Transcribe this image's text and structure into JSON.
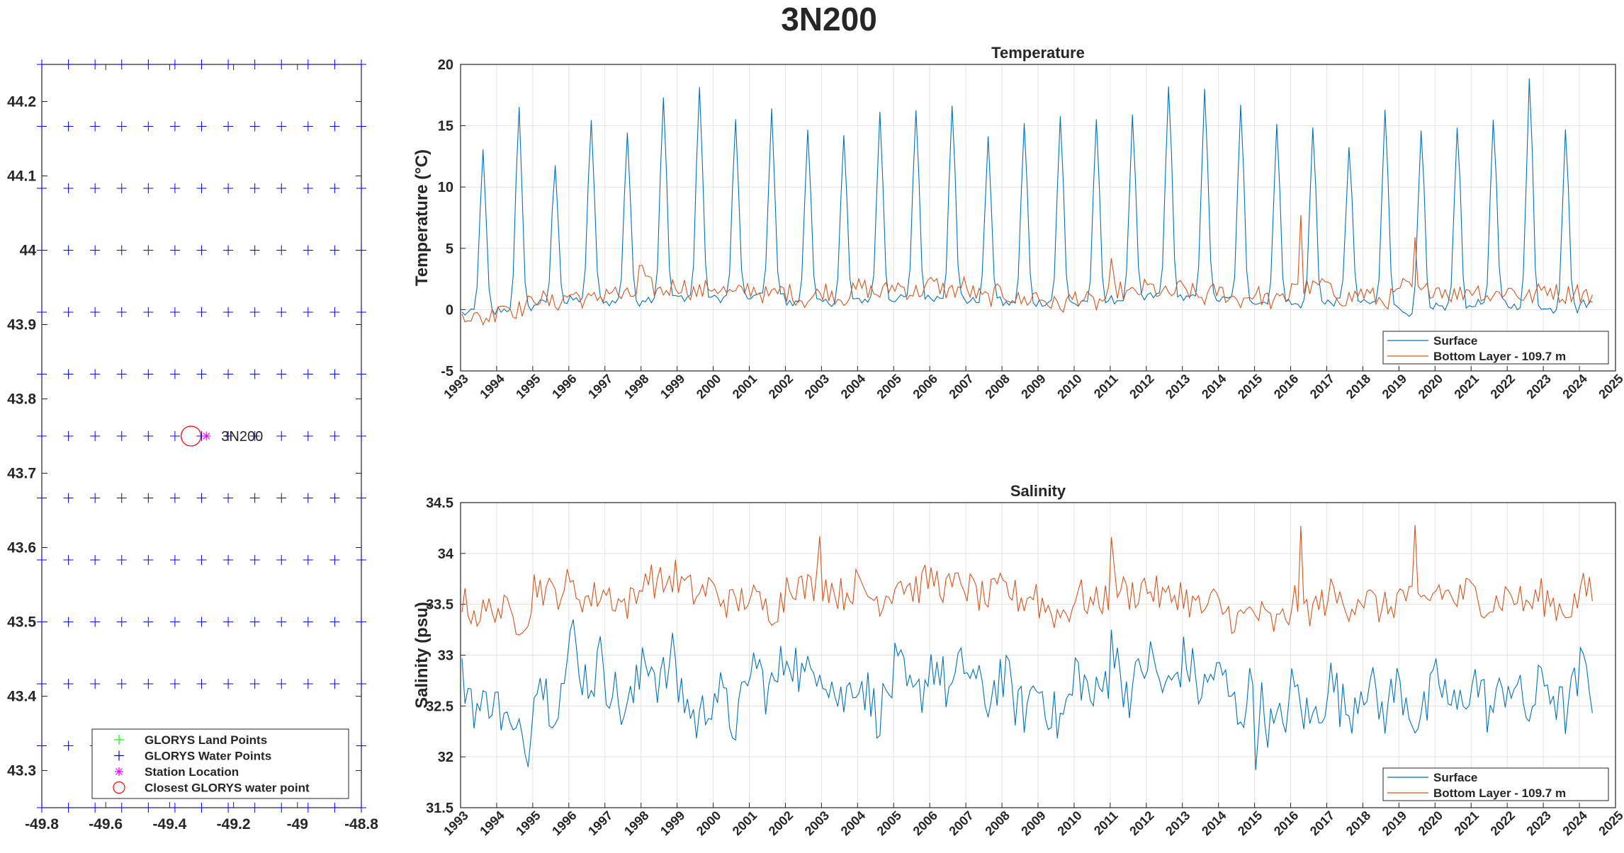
{
  "figure": {
    "title": "3N200"
  },
  "chart_data": [
    {
      "type": "scatter",
      "id": "map",
      "title": "",
      "xlabel": "",
      "ylabel": "",
      "xlim": [
        -49.8,
        -48.8
      ],
      "ylim": [
        43.25,
        44.25
      ],
      "xticks": [
        -49.8,
        -49.6,
        -49.4,
        -49.2,
        -49,
        -48.8
      ],
      "xtick_labels": [
        "-49.8",
        "-49.6",
        "-49.4",
        "-49.2",
        "-49",
        "-48.8"
      ],
      "yticks": [
        43.3,
        43.4,
        43.5,
        43.6,
        43.7,
        43.8,
        43.9,
        44,
        44.1,
        44.2
      ],
      "ytick_labels": [
        "43.3",
        "43.4",
        "43.5",
        "43.6",
        "43.7",
        "43.8",
        "43.9",
        "44",
        "44.1",
        "44.2"
      ],
      "grid": false,
      "legend_position": "bottom-right",
      "water_points": {
        "lon_start": -49.8,
        "lon_step": 0.08333,
        "lon_count": 13,
        "lat_start": 43.25,
        "lat_step": 0.08333,
        "lat_count": 13
      },
      "land_points": [],
      "station": {
        "name": "3N200",
        "lon": -49.285,
        "lat": 43.75
      },
      "closest_point": {
        "lon": -49.333,
        "lat": 43.75
      },
      "legend": [
        {
          "label": "GLORYS Land Points",
          "marker": "plus",
          "color": "#00ff00"
        },
        {
          "label": "GLORYS Water Points",
          "marker": "plus",
          "color": "#0000ff"
        },
        {
          "label": "Station Location",
          "marker": "asterisk",
          "color": "#ff00ff"
        },
        {
          "label": "Closest GLORYS water point",
          "marker": "circle",
          "color": "#ff0000"
        }
      ]
    },
    {
      "type": "line",
      "id": "temperature",
      "title": "Temperature",
      "xlabel": "",
      "ylabel": "Temperature (°C)",
      "xlim": [
        1993,
        2025
      ],
      "ylim": [
        -5,
        20
      ],
      "yticks": [
        -5,
        0,
        5,
        10,
        15,
        20
      ],
      "ytick_labels": [
        "-5",
        "0",
        "5",
        "10",
        "15",
        "20"
      ],
      "xtick_labels": [
        "1993",
        "1994",
        "1995",
        "1996",
        "1997",
        "1998",
        "1999",
        "2000",
        "2001",
        "2002",
        "2003",
        "2004",
        "2005",
        "2006",
        "2007",
        "2008",
        "2009",
        "2010",
        "2011",
        "2012",
        "2013",
        "2014",
        "2015",
        "2016",
        "2017",
        "2018",
        "2019",
        "2020",
        "2021",
        "2022",
        "2023",
        "2024",
        "2025"
      ],
      "grid": true,
      "legend_position": "bottom-right",
      "time_start": 1993.04,
      "time_step_years": 0.0833,
      "series": [
        {
          "name": "Surface",
          "color": "#0072bd",
          "annual_peaks": [
            12.8,
            16.3,
            12.0,
            15.6,
            14.5,
            17.5,
            18.3,
            15.4,
            16.1,
            14.8,
            14.1,
            16.0,
            16.4,
            16.9,
            13.8,
            15.2,
            15.7,
            15.7,
            15.6,
            18.5,
            18.3,
            16.5,
            14.9,
            14.8,
            13.5,
            16.2,
            14.6,
            14.9,
            15.6,
            18.7,
            15.0,
            3.0
          ],
          "annual_minima": [
            -0.3,
            0.0,
            0.5,
            0.8,
            0.6,
            0.9,
            1.0,
            0.9,
            1.1,
            0.5,
            0.6,
            0.8,
            0.9,
            1.0,
            0.7,
            0.5,
            0.6,
            0.4,
            0.8,
            1.1,
            0.9,
            0.8,
            0.6,
            0.4,
            0.6,
            0.5,
            -0.2,
            0.2,
            0.5,
            0.3,
            0.0,
            0.5
          ],
          "peak_phase_years": 0.62
        },
        {
          "name": "Bottom Layer - 109.7 m",
          "color": "#d95319",
          "annual_means": [
            -0.5,
            0.3,
            0.8,
            1.0,
            1.3,
            1.8,
            1.7,
            1.5,
            1.4,
            1.1,
            1.3,
            1.6,
            1.7,
            1.8,
            1.2,
            1.0,
            0.6,
            0.8,
            1.5,
            1.5,
            1.3,
            1.1,
            0.9,
            2.0,
            1.2,
            1.0,
            1.6,
            1.5,
            1.4,
            1.3,
            1.5,
            1.0
          ],
          "notable_values": [
            {
              "x": 2016.25,
              "y": 7.7
            },
            {
              "x": 2019.45,
              "y": 5.9
            },
            {
              "x": 2011.0,
              "y": 4.2
            },
            {
              "x": 1998.0,
              "y": 3.6
            }
          ]
        }
      ]
    },
    {
      "type": "line",
      "id": "salinity",
      "title": "Salinity",
      "xlabel": "",
      "ylabel": "Salinity (psu)",
      "xlim": [
        1993,
        2025
      ],
      "ylim": [
        31.5,
        34.5
      ],
      "yticks": [
        31.5,
        32,
        32.5,
        33,
        33.5,
        34,
        34.5
      ],
      "ytick_labels": [
        "31.5",
        "32",
        "32.5",
        "33",
        "33.5",
        "34",
        "34.5"
      ],
      "xtick_labels": [
        "1993",
        "1994",
        "1995",
        "1996",
        "1997",
        "1998",
        "1999",
        "2000",
        "2001",
        "2002",
        "2003",
        "2004",
        "2005",
        "2006",
        "2007",
        "2008",
        "2009",
        "2010",
        "2011",
        "2012",
        "2013",
        "2014",
        "2015",
        "2016",
        "2017",
        "2018",
        "2019",
        "2020",
        "2021",
        "2022",
        "2023",
        "2024",
        "2025"
      ],
      "grid": true,
      "legend_position": "bottom-right",
      "time_start": 1993.04,
      "time_step_years": 0.0833,
      "series": [
        {
          "name": "Surface",
          "color": "#0072bd",
          "annual_means": [
            32.6,
            32.3,
            32.7,
            32.9,
            32.6,
            32.9,
            32.5,
            32.5,
            32.8,
            32.9,
            32.7,
            32.6,
            32.7,
            32.8,
            32.7,
            32.6,
            32.5,
            32.7,
            32.8,
            32.8,
            32.8,
            32.6,
            32.4,
            32.5,
            32.6,
            32.6,
            32.5,
            32.6,
            32.6,
            32.6,
            32.6,
            32.7
          ],
          "notable_values": [
            {
              "x": 1994.9,
              "y": 31.9
            },
            {
              "x": 1996.1,
              "y": 33.35
            },
            {
              "x": 2015.0,
              "y": 31.87
            },
            {
              "x": 2011.05,
              "y": 33.25
            }
          ]
        },
        {
          "name": "Bottom Layer - 109.7 m",
          "color": "#d95319",
          "annual_means": [
            33.45,
            33.4,
            33.65,
            33.6,
            33.55,
            33.75,
            33.65,
            33.55,
            33.5,
            33.7,
            33.65,
            33.6,
            33.7,
            33.7,
            33.6,
            33.6,
            33.45,
            33.55,
            33.65,
            33.6,
            33.5,
            33.4,
            33.35,
            33.5,
            33.55,
            33.5,
            33.55,
            33.6,
            33.55,
            33.55,
            33.5,
            33.6
          ],
          "notable_values": [
            {
              "x": 2016.3,
              "y": 34.27
            },
            {
              "x": 2019.45,
              "y": 34.28
            },
            {
              "x": 2002.95,
              "y": 34.17
            },
            {
              "x": 2011.05,
              "y": 34.16
            }
          ]
        }
      ]
    }
  ]
}
